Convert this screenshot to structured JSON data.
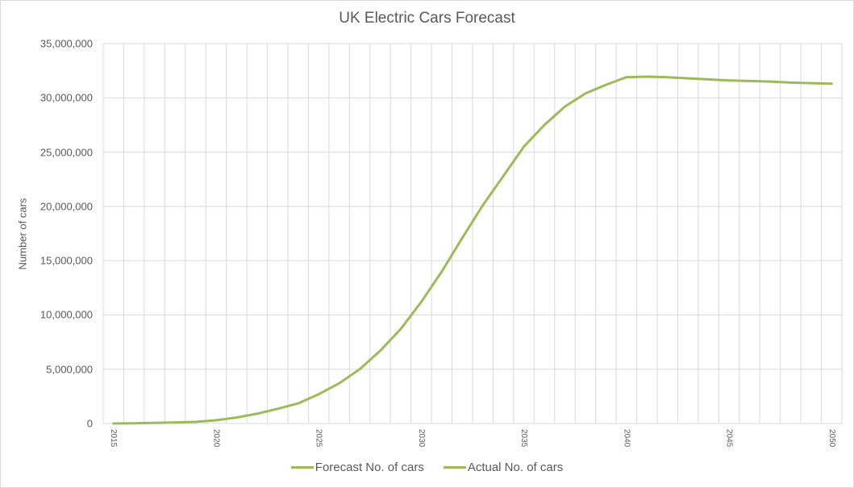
{
  "chart": {
    "title": "UK Electric Cars Forecast",
    "y_axis_title": "Number of cars",
    "line_color": "#9BBB59",
    "grid_color": "#D9D9D9",
    "legend": [
      {
        "label": "Forecast No. of cars",
        "color": "#9BBB59"
      },
      {
        "label": "Actual No. of cars",
        "color": "#9BBB59"
      }
    ]
  },
  "chart_data": {
    "type": "line",
    "title": "UK Electric Cars Forecast",
    "xlabel": "",
    "ylabel": "Number of cars",
    "ylim": [
      0,
      35000000
    ],
    "y_ticks": [
      "0",
      "5,000,000",
      "10,000,000",
      "15,000,000",
      "20,000,000",
      "25,000,000",
      "30,000,000",
      "35,000,000"
    ],
    "x_tick_labels": [
      "2015",
      "2020",
      "2025",
      "2030",
      "2035",
      "2040",
      "2045",
      "2050"
    ],
    "grid": {
      "horizontal": true,
      "vertical": true
    },
    "legend_position": "bottom",
    "x": [
      2015,
      2016,
      2017,
      2018,
      2019,
      2020,
      2021,
      2022,
      2023,
      2024,
      2025,
      2026,
      2027,
      2028,
      2029,
      2030,
      2031,
      2032,
      2033,
      2034,
      2035,
      2036,
      2037,
      2038,
      2039,
      2040,
      2041,
      2042,
      2043,
      2044,
      2045,
      2046,
      2047,
      2048,
      2049,
      2050
    ],
    "series": [
      {
        "name": "Forecast No. of cars",
        "values": [
          0,
          20000,
          50000,
          100000,
          150000,
          300000,
          550000,
          900000,
          1350000,
          1850000,
          2700000,
          3700000,
          5000000,
          6700000,
          8700000,
          11200000,
          14000000,
          17100000,
          20100000,
          22800000,
          25500000,
          27500000,
          29200000,
          30400000,
          31200000,
          31900000,
          31950000,
          31900000,
          31800000,
          31700000,
          31600000,
          31550000,
          31500000,
          31400000,
          31350000,
          31300000
        ]
      },
      {
        "name": "Actual No. of cars",
        "values": []
      }
    ]
  }
}
